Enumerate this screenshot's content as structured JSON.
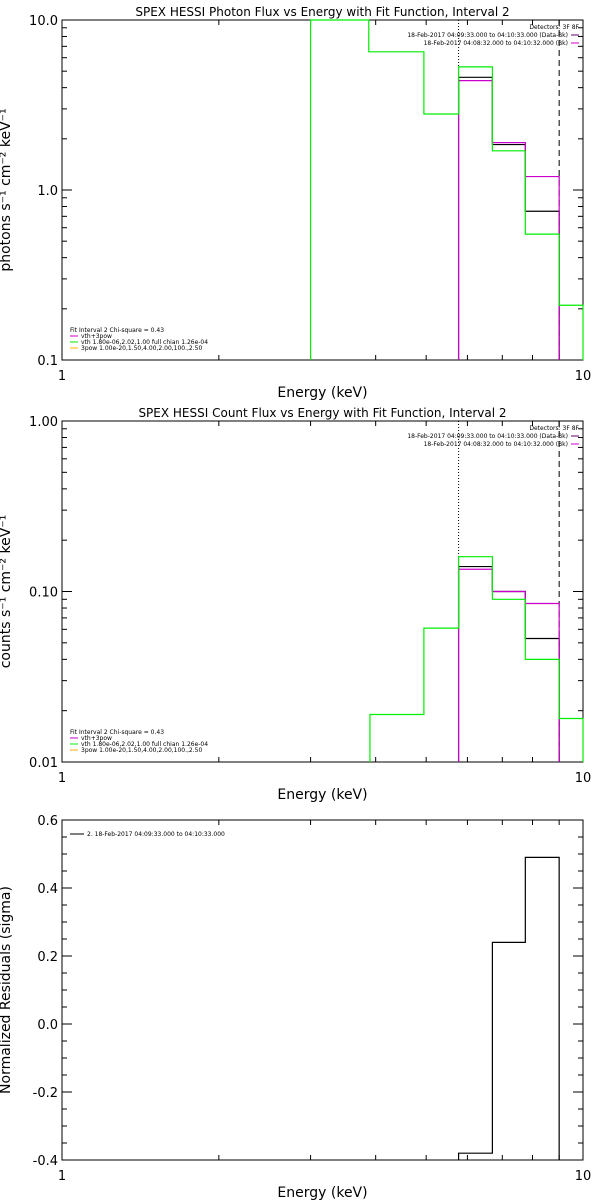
{
  "colors": {
    "black": "#000000",
    "magenta": "#cc00cc",
    "green": "#00ee00",
    "orange": "#ffb000",
    "purple": "#660066"
  },
  "chart_data": [
    {
      "type": "line",
      "title": "SPEX HESSI Photon Flux vs Energy with Fit Function, Interval 2",
      "xlabel": "Energy (keV)",
      "ylabel": "photons s⁻¹ cm⁻² keV⁻¹",
      "xscale": "log",
      "yscale": "log",
      "xlim": [
        1,
        10
      ],
      "ylim": [
        0.1,
        10
      ],
      "xticks": [
        {
          "v": 1,
          "label": "1"
        },
        {
          "v": 10,
          "label": "10"
        }
      ],
      "yticks": [
        {
          "v": 0.1,
          "label": "0.1"
        },
        {
          "v": 1,
          "label": "1.0"
        },
        {
          "v": 10,
          "label": "10.0"
        }
      ],
      "legend_tr": {
        "header": "Detectors: 3F 8F",
        "items": [
          {
            "text": "18-Feb-2017 04:09:33.000 to 04:10:33.000 (Data-Bk)",
            "color": "#660066"
          },
          {
            "text": "18-Feb-2017 04:08:32.000 to 04:10:32.000 (Bk)",
            "color": "#cc00cc"
          }
        ]
      },
      "legend_bl": [
        {
          "text": "Fit Interval 2   Chi-square = 0.43",
          "color": ""
        },
        {
          "text": "vth+3pow",
          "color": "#cc00cc"
        },
        {
          "text": "vth 1.80e-06,2.02,1.00   full chian 1.26e-04",
          "color": "#00ee00"
        },
        {
          "text": "3pow 1.00e-20,1.50,4.00,2.00,100.,2.50",
          "color": "#ffb000"
        }
      ],
      "vlines": [
        {
          "x": 5.77,
          "style": "dotted"
        },
        {
          "x": 9.0,
          "style": "dashed"
        }
      ],
      "series": [
        {
          "name": "Data-Bk",
          "color": "#000000",
          "edges": [
            5.77,
            6.7,
            7.75,
            9.0
          ],
          "values": [
            4.6,
            1.85,
            0.75
          ]
        },
        {
          "name": "vth+3pow",
          "color": "#cc00cc",
          "edges": [
            5.77,
            6.7,
            7.75,
            9.0
          ],
          "values": [
            4.4,
            1.9,
            1.2
          ]
        },
        {
          "name": "vth",
          "color": "#00ee00",
          "edges": [
            3.0,
            3.88,
            4.95,
            5.77,
            6.7,
            7.75,
            9.0,
            10.0
          ],
          "values": [
            10.0,
            6.5,
            2.8,
            5.3,
            1.7,
            0.55,
            0.21
          ]
        }
      ]
    },
    {
      "type": "line",
      "title": "SPEX HESSI Count Flux vs Energy with Fit Function, Interval 2",
      "xlabel": "Energy (keV)",
      "ylabel": "counts s⁻¹ cm⁻² keV⁻¹",
      "xscale": "log",
      "yscale": "log",
      "xlim": [
        1,
        10
      ],
      "ylim": [
        0.01,
        1
      ],
      "xticks": [
        {
          "v": 1,
          "label": "1"
        },
        {
          "v": 10,
          "label": "10"
        }
      ],
      "yticks": [
        {
          "v": 0.01,
          "label": "0.01"
        },
        {
          "v": 0.1,
          "label": "0.10"
        },
        {
          "v": 1,
          "label": "1.00"
        }
      ],
      "legend_tr": {
        "header": "Detectors: 3F 8F",
        "items": [
          {
            "text": "18-Feb-2017 04:09:33.000 to 04:10:33.000 (Data-Bk)",
            "color": "#660066"
          },
          {
            "text": "18-Feb-2017 04:08:32.000 to 04:10:32.000 (Bk)",
            "color": "#cc00cc"
          }
        ]
      },
      "legend_bl": [
        {
          "text": "Fit Interval 2   Chi-square = 0.43",
          "color": ""
        },
        {
          "text": "vth+3pow",
          "color": "#cc00cc"
        },
        {
          "text": "vth 1.80e-06,2.02,1.00   full chian 1.26e-04",
          "color": "#00ee00"
        },
        {
          "text": "3pow 1.00e-20,1.50,4.00,2.00,100.,2.50",
          "color": "#ffb000"
        }
      ],
      "vlines": [
        {
          "x": 5.77,
          "style": "dotted"
        },
        {
          "x": 9.0,
          "style": "dashed"
        }
      ],
      "series": [
        {
          "name": "Data-Bk",
          "color": "#000000",
          "edges": [
            5.77,
            6.7,
            7.75,
            9.0
          ],
          "values": [
            0.14,
            0.1,
            0.053
          ]
        },
        {
          "name": "vth+3pow",
          "color": "#cc00cc",
          "edges": [
            5.77,
            6.7,
            7.75,
            9.0
          ],
          "values": [
            0.135,
            0.1,
            0.085
          ]
        },
        {
          "name": "vth",
          "color": "#00ee00",
          "edges": [
            3.9,
            4.95,
            5.77,
            6.7,
            7.75,
            9.0,
            10.0
          ],
          "values": [
            0.019,
            0.061,
            0.16,
            0.09,
            0.04,
            0.018
          ]
        }
      ]
    },
    {
      "type": "line",
      "title": "",
      "xlabel": "Energy (keV)",
      "ylabel": "Normalized Residuals (sigma)",
      "xscale": "log",
      "yscale": "linear",
      "xlim": [
        1,
        10
      ],
      "ylim": [
        -0.4,
        0.6
      ],
      "xticks": [
        {
          "v": 1,
          "label": "1"
        },
        {
          "v": 10,
          "label": "10"
        }
      ],
      "yticks": [
        {
          "v": -0.4,
          "label": "-0.4"
        },
        {
          "v": -0.2,
          "label": "-0.2"
        },
        {
          "v": 0.0,
          "label": "0.0"
        },
        {
          "v": 0.2,
          "label": "0.2"
        },
        {
          "v": 0.4,
          "label": "0.4"
        },
        {
          "v": 0.6,
          "label": "0.6"
        }
      ],
      "legend_tl": [
        {
          "text": "2. 18-Feb-2017 04:09:33.000 to 04:10:33.000",
          "color": "#000000"
        }
      ],
      "series": [
        {
          "name": "2. 18-Feb-2017 04:09:33.000 to 04:10:33.000",
          "color": "#000000",
          "edges": [
            5.77,
            6.7,
            7.75,
            9.0
          ],
          "values": [
            -0.38,
            0.24,
            0.49
          ]
        }
      ]
    }
  ]
}
